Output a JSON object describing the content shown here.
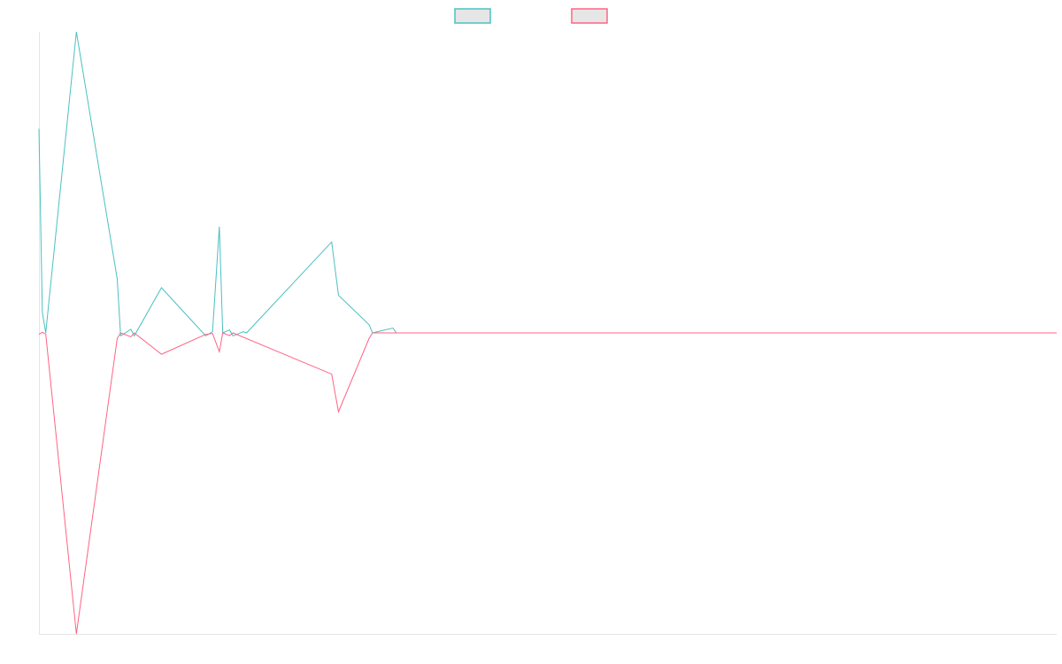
{
  "chart_data": {
    "type": "line",
    "title": "",
    "xlabel": "",
    "ylabel": "",
    "grid": false,
    "legend": "top-center",
    "x_count": 300,
    "ylim": [
      -100,
      100
    ],
    "series": [
      {
        "color": "#4bc0c0",
        "fill": "#e6e6e6",
        "points": [
          [
            0,
            67.8
          ],
          [
            1,
            6.8
          ],
          [
            2,
            0
          ],
          [
            11,
            100
          ],
          [
            23,
            17.9
          ],
          [
            24,
            -1
          ],
          [
            27,
            1.2
          ],
          [
            28,
            -1
          ],
          [
            36,
            15
          ],
          [
            49,
            -1
          ],
          [
            51,
            0.4
          ],
          [
            53,
            35.3
          ],
          [
            54,
            0
          ],
          [
            56,
            1
          ],
          [
            57,
            -1
          ],
          [
            60,
            0.4
          ],
          [
            61,
            0
          ],
          [
            86,
            30.2
          ],
          [
            88,
            12.5
          ],
          [
            97,
            2.7
          ],
          [
            98,
            0
          ],
          [
            104,
            1.6
          ],
          [
            105,
            0
          ],
          [
            299,
            0
          ]
        ]
      },
      {
        "color": "#ff6384",
        "fill": "#e6e6e6",
        "points": [
          [
            0,
            -0.5
          ],
          [
            1,
            0.2
          ],
          [
            2,
            -0.4
          ],
          [
            11,
            -100
          ],
          [
            23,
            -1.8
          ],
          [
            24,
            0
          ],
          [
            27,
            -1.3
          ],
          [
            28,
            0
          ],
          [
            36,
            -7.1
          ],
          [
            49,
            -0.5
          ],
          [
            51,
            -0.2
          ],
          [
            53,
            -6.3
          ],
          [
            54,
            0
          ],
          [
            56,
            -0.9
          ],
          [
            57,
            0
          ],
          [
            86,
            -13.7
          ],
          [
            88,
            -26.2
          ],
          [
            97,
            -1.8
          ],
          [
            98,
            0
          ],
          [
            299,
            0
          ]
        ]
      }
    ]
  }
}
